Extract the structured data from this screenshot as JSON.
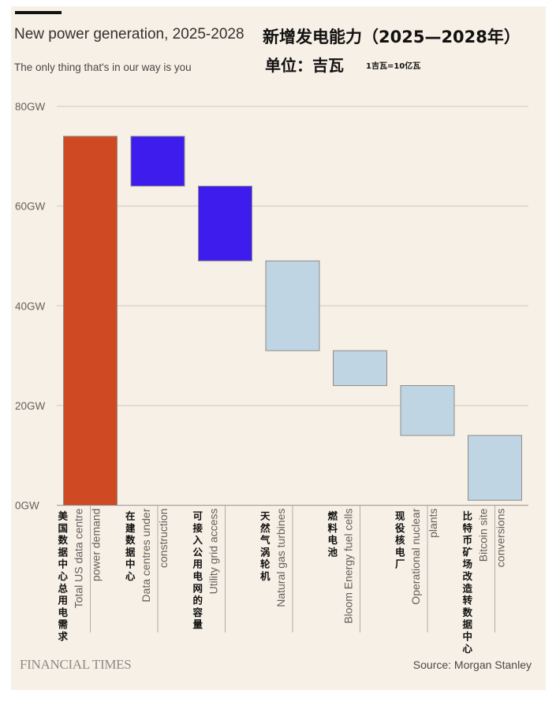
{
  "header": {
    "title_en": "New power generation, 2025-2028",
    "subtitle_en": "The only thing that's in our way is you",
    "title_zh": "新增发电能力（2025—2028年）",
    "unit_zh": "单位：吉瓦",
    "unit_note_zh": "1吉瓦=10亿瓦"
  },
  "footer": {
    "logo": "FINANCIAL TIMES",
    "source": "Source: Morgan Stanley"
  },
  "colors": {
    "background": "#f7f0e6",
    "total": "#cf4a22",
    "data_centres": "#3d1ced",
    "supply": "#bfd5e3",
    "bar_border": "#8e8c8a",
    "grid": "#ddd5ca"
  },
  "chart_data": {
    "type": "bar",
    "subtype": "waterfall",
    "title": "New power generation, 2025-2028",
    "subtitle": "The only thing that's in our way is you",
    "xlabel": "",
    "ylabel": "",
    "ylim": [
      0,
      80
    ],
    "yticks": [
      0,
      20,
      40,
      60,
      80
    ],
    "ytick_labels": [
      "0GW",
      "20GW",
      "40GW",
      "60GW",
      "80GW"
    ],
    "grid": true,
    "unit": "GW",
    "categories": [
      {
        "en": [
          "Total US data centre",
          "power demand"
        ],
        "zh": "美国数据中心总用电需求",
        "start": 0,
        "end": 74,
        "group": "total"
      },
      {
        "en": [
          "Data centres under",
          "construction"
        ],
        "zh": "在建数据中心",
        "start": 74,
        "end": 64,
        "group": "data_centres"
      },
      {
        "en": [
          "Utility grid access"
        ],
        "zh": "可接入公用电网的容量",
        "start": 64,
        "end": 49,
        "group": "data_centres"
      },
      {
        "en": [
          "Natural gas turbines"
        ],
        "zh": "天然气涡轮机",
        "start": 49,
        "end": 31,
        "group": "supply"
      },
      {
        "en": [
          "Bloom Energy fuel cells"
        ],
        "zh": "燃料电池",
        "start": 31,
        "end": 24,
        "group": "supply"
      },
      {
        "en": [
          "Operational nuclear",
          "plants"
        ],
        "zh": "现役核电厂",
        "start": 24,
        "end": 14,
        "group": "supply"
      },
      {
        "en": [
          "Bitcoin site",
          "conversions"
        ],
        "zh": "比特币矿场改造转数据中心",
        "start": 14,
        "end": 1,
        "group": "supply"
      }
    ],
    "values": [
      74,
      10,
      15,
      18,
      7,
      10,
      13
    ],
    "source": "Morgan Stanley"
  }
}
